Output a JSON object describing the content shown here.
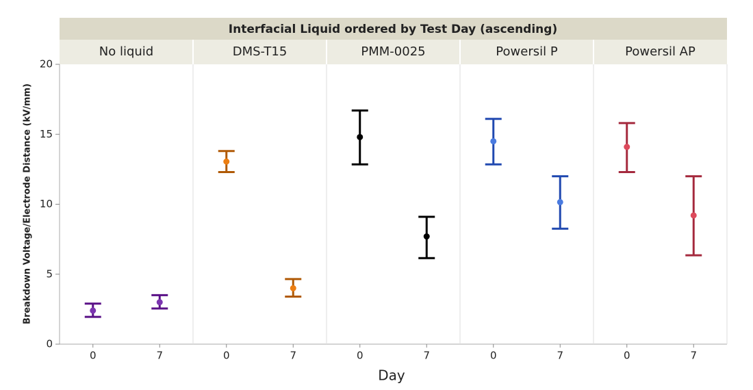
{
  "chart_data": {
    "type": "errorbar",
    "title": "Interfacial Liquid ordered by Test Day (ascending)",
    "xlabel": "Day",
    "ylabel": "Breakdown Voltage/Electrode Distance (kV/mm)",
    "ylim": [
      0,
      20
    ],
    "yticks": [
      0,
      5,
      10,
      15,
      20
    ],
    "panels": [
      {
        "name": "No liquid",
        "categories": [
          "0",
          "7"
        ],
        "values": [
          2.4,
          3.0
        ],
        "lower": [
          1.95,
          2.55
        ],
        "upper": [
          2.9,
          3.5
        ],
        "color": "#5a1187",
        "point_color": "#7b35b0"
      },
      {
        "name": "DMS-T15",
        "categories": [
          "0",
          "7"
        ],
        "values": [
          13.05,
          4.0
        ],
        "lower": [
          12.3,
          3.4
        ],
        "upper": [
          13.8,
          4.65
        ],
        "color": "#b05a06",
        "point_color": "#ec7e12"
      },
      {
        "name": "PMM-0025",
        "categories": [
          "0",
          "7"
        ],
        "values": [
          14.8,
          7.7
        ],
        "lower": [
          12.85,
          6.15
        ],
        "upper": [
          16.7,
          9.1
        ],
        "color": "#000000",
        "point_color": "#000000"
      },
      {
        "name": "Powersil P",
        "categories": [
          "0",
          "7"
        ],
        "values": [
          14.5,
          10.15
        ],
        "lower": [
          12.85,
          8.25
        ],
        "upper": [
          16.1,
          12.0
        ],
        "color": "#2149b0",
        "point_color": "#4a7be0"
      },
      {
        "name": "Powersil AP",
        "categories": [
          "0",
          "7"
        ],
        "values": [
          14.1,
          9.2
        ],
        "lower": [
          12.3,
          6.35
        ],
        "upper": [
          15.8,
          12.0
        ],
        "color": "#a52a3e",
        "point_color": "#dd4a5c"
      }
    ]
  }
}
